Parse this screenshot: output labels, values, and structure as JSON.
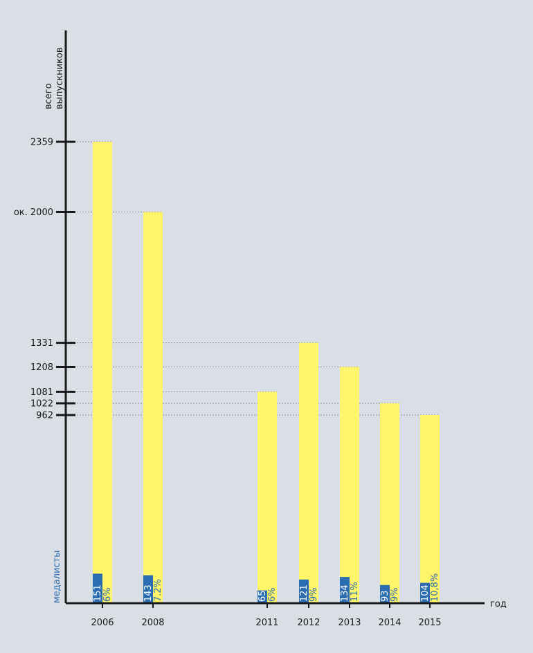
{
  "chart_data": {
    "type": "bar",
    "ylabel_lines": [
      "всего",
      "выпускников"
    ],
    "xlabel": "год",
    "secondary_label": "медалисты",
    "categories": [
      "2006",
      "2008",
      "2011",
      "2012",
      "2013",
      "2014",
      "2015"
    ],
    "series": [
      {
        "name": "всего выпускников",
        "values": [
          2359,
          2000,
          1081,
          1331,
          1208,
          1022,
          962
        ],
        "color": "#fff56a"
      },
      {
        "name": "медалисты",
        "values": [
          151,
          143,
          65,
          121,
          134,
          93,
          104
        ],
        "color": "#2a6db0"
      }
    ],
    "percent_labels": [
      "6%",
      "7.2%",
      "6%",
      "9%",
      "11%",
      "9%",
      "10,8%"
    ],
    "ytick_labels": [
      "2359",
      "ок. 2000",
      "1331",
      "1208",
      "1081",
      "1022",
      "962"
    ],
    "ytick_values": [
      2359,
      2000,
      1331,
      1208,
      1081,
      1022,
      962
    ],
    "ylim": [
      0,
      2359
    ],
    "grid": "dotted lines from tick to bar top",
    "colors": {
      "background": "#dadee5",
      "axis": "#1a1a1a",
      "total_bar": "#fff56a",
      "medal_bar": "#2a6db0",
      "guide_line": "#8a8f96"
    }
  }
}
